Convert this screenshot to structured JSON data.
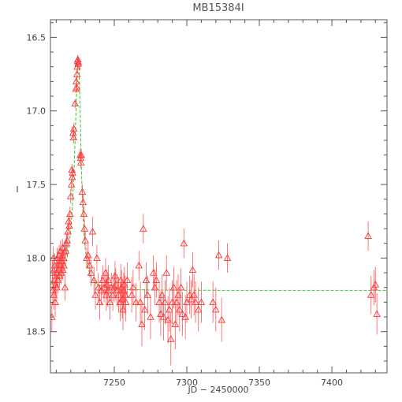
{
  "chart_data": {
    "type": "scatter",
    "title": "MB15384I",
    "xlabel": "JD − 2450000",
    "ylabel": "I",
    "xlim": [
      7206,
      7438
    ],
    "ylim": [
      18.78,
      16.38
    ],
    "y_inverted": true,
    "xticks": [
      7250,
      7300,
      7350,
      7400
    ],
    "yticks": [
      16.5,
      17.0,
      17.5,
      18.0,
      18.5
    ],
    "xtick_labels": [
      "7250",
      "7300",
      "7350",
      "7400"
    ],
    "ytick_labels": [
      "16.5",
      "17.0",
      "17.5",
      "18.0",
      "18.5"
    ],
    "marker": "open-triangle",
    "colors": {
      "points": "#ff3333",
      "errorbars": "#ff5555",
      "model": "#33cc33",
      "axes": "#555555"
    },
    "series": [
      {
        "kind": "observations",
        "points": [
          [
            7207.0,
            18.4,
            0.1
          ],
          [
            7207.3,
            18.1,
            0.08
          ],
          [
            7207.6,
            18.22,
            0.09
          ],
          [
            7208.0,
            18.0,
            0.08
          ],
          [
            7208.3,
            18.25,
            0.1
          ],
          [
            7208.6,
            18.15,
            0.09
          ],
          [
            7209.0,
            18.05,
            0.08
          ],
          [
            7209.3,
            18.3,
            0.1
          ],
          [
            7209.6,
            18.18,
            0.08
          ],
          [
            7210.0,
            18.1,
            0.08
          ],
          [
            7210.3,
            18.2,
            0.09
          ],
          [
            7210.6,
            18.0,
            0.07
          ],
          [
            7211.0,
            18.05,
            0.08
          ],
          [
            7211.3,
            18.15,
            0.09
          ],
          [
            7211.6,
            18.08,
            0.07
          ],
          [
            7212.0,
            17.98,
            0.07
          ],
          [
            7212.3,
            18.12,
            0.08
          ],
          [
            7212.6,
            18.05,
            0.07
          ],
          [
            7213.0,
            17.95,
            0.07
          ],
          [
            7213.3,
            18.1,
            0.08
          ],
          [
            7213.6,
            18.0,
            0.07
          ],
          [
            7214.0,
            18.02,
            0.07
          ],
          [
            7214.3,
            17.93,
            0.06
          ],
          [
            7214.6,
            18.08,
            0.07
          ],
          [
            7215.0,
            18.0,
            0.06
          ],
          [
            7215.3,
            18.05,
            0.07
          ],
          [
            7215.6,
            17.96,
            0.06
          ],
          [
            7216.0,
            18.2,
            0.09
          ],
          [
            7216.5,
            17.95,
            0.06
          ],
          [
            7217.0,
            17.9,
            0.06
          ],
          [
            7217.5,
            17.88,
            0.06
          ],
          [
            7218.0,
            17.82,
            0.05
          ],
          [
            7218.5,
            17.75,
            0.05
          ],
          [
            7219.0,
            17.78,
            0.05
          ],
          [
            7219.5,
            17.7,
            0.05
          ],
          [
            7220.0,
            17.58,
            0.05
          ],
          [
            7220.5,
            17.5,
            0.04
          ],
          [
            7220.8,
            17.4,
            0.04
          ],
          [
            7221.0,
            17.45,
            0.04
          ],
          [
            7221.3,
            17.42,
            0.04
          ],
          [
            7221.6,
            17.15,
            0.04
          ],
          [
            7221.9,
            17.18,
            0.04
          ],
          [
            7222.2,
            17.12,
            0.04
          ],
          [
            7223.0,
            16.95,
            0.03
          ],
          [
            7223.5,
            16.85,
            0.03
          ],
          [
            7223.8,
            16.8,
            0.03
          ],
          [
            7224.1,
            16.84,
            0.03
          ],
          [
            7224.3,
            16.75,
            0.03
          ],
          [
            7224.5,
            16.7,
            0.03
          ],
          [
            7224.7,
            16.66,
            0.03
          ],
          [
            7224.9,
            16.65,
            0.03
          ],
          [
            7225.1,
            16.68,
            0.03
          ],
          [
            7225.3,
            16.67,
            0.03
          ],
          [
            7226.5,
            17.3,
            0.04
          ],
          [
            7226.8,
            17.32,
            0.04
          ],
          [
            7227.0,
            17.35,
            0.04
          ],
          [
            7227.3,
            17.3,
            0.04
          ],
          [
            7228.0,
            17.55,
            0.05
          ],
          [
            7228.5,
            17.62,
            0.05
          ],
          [
            7229.0,
            17.7,
            0.05
          ],
          [
            7229.5,
            17.8,
            0.06
          ],
          [
            7230.0,
            17.88,
            0.06
          ],
          [
            7231.0,
            18.0,
            0.07
          ],
          [
            7232.0,
            17.98,
            0.08
          ],
          [
            7233.0,
            18.05,
            0.08
          ],
          [
            7234.0,
            18.1,
            0.09
          ],
          [
            7235.0,
            17.82,
            0.1
          ],
          [
            7236.0,
            18.15,
            0.09
          ],
          [
            7237.0,
            18.25,
            0.1
          ],
          [
            7238.0,
            18.0,
            0.09
          ],
          [
            7239.0,
            18.2,
            0.1
          ],
          [
            7240.0,
            18.3,
            0.12
          ],
          [
            7241.0,
            18.22,
            0.1
          ],
          [
            7242.0,
            18.15,
            0.1
          ],
          [
            7243.0,
            18.2,
            0.1
          ],
          [
            7244.0,
            18.1,
            0.1
          ],
          [
            7244.5,
            18.25,
            0.11
          ],
          [
            7245.0,
            18.18,
            0.1
          ],
          [
            7245.5,
            18.22,
            0.11
          ],
          [
            7246.0,
            18.15,
            0.1
          ],
          [
            7247.0,
            18.3,
            0.12
          ],
          [
            7248.0,
            18.2,
            0.1
          ],
          [
            7249.0,
            18.25,
            0.11
          ],
          [
            7250.0,
            18.2,
            0.1
          ],
          [
            7250.5,
            18.12,
            0.1
          ],
          [
            7251.0,
            18.18,
            0.11
          ],
          [
            7252.0,
            18.22,
            0.11
          ],
          [
            7253.0,
            18.25,
            0.12
          ],
          [
            7254.0,
            18.3,
            0.13
          ],
          [
            7254.5,
            18.15,
            0.11
          ],
          [
            7255.0,
            18.2,
            0.12
          ],
          [
            7255.5,
            18.28,
            0.13
          ],
          [
            7256.0,
            18.35,
            0.14
          ],
          [
            7256.5,
            18.22,
            0.12
          ],
          [
            7257.0,
            18.18,
            0.12
          ],
          [
            7257.5,
            18.25,
            0.13
          ],
          [
            7258.0,
            18.3,
            0.13
          ],
          [
            7259.0,
            18.15,
            0.12
          ],
          [
            7262.0,
            18.25,
            0.12
          ],
          [
            7263.0,
            18.2,
            0.12
          ],
          [
            7265.0,
            18.3,
            0.13
          ],
          [
            7267.0,
            18.05,
            0.1
          ],
          [
            7268.0,
            18.3,
            0.14
          ],
          [
            7269.0,
            18.45,
            0.15
          ],
          [
            7270.0,
            17.8,
            0.1
          ],
          [
            7271.0,
            18.35,
            0.14
          ],
          [
            7272.0,
            18.15,
            0.12
          ],
          [
            7273.0,
            18.25,
            0.13
          ],
          [
            7275.0,
            18.4,
            0.15
          ],
          [
            7277.0,
            18.1,
            0.12
          ],
          [
            7278.0,
            18.2,
            0.12
          ],
          [
            7279.0,
            18.15,
            0.12
          ],
          [
            7281.0,
            18.3,
            0.14
          ],
          [
            7282.0,
            18.38,
            0.15
          ],
          [
            7283.0,
            18.25,
            0.14
          ],
          [
            7284.0,
            18.4,
            0.16
          ],
          [
            7285.0,
            18.3,
            0.15
          ],
          [
            7286.0,
            18.1,
            0.12
          ],
          [
            7287.0,
            18.42,
            0.16
          ],
          [
            7288.0,
            18.35,
            0.15
          ],
          [
            7289.0,
            18.55,
            0.18
          ],
          [
            7290.0,
            18.3,
            0.15
          ],
          [
            7291.0,
            18.2,
            0.14
          ],
          [
            7292.0,
            18.45,
            0.17
          ],
          [
            7293.0,
            18.3,
            0.15
          ],
          [
            7294.0,
            18.25,
            0.14
          ],
          [
            7295.0,
            18.35,
            0.15
          ],
          [
            7296.0,
            18.2,
            0.13
          ],
          [
            7297.0,
            18.38,
            0.15
          ],
          [
            7298.0,
            17.9,
            0.1
          ],
          [
            7299.0,
            18.4,
            0.15
          ],
          [
            7300.0,
            18.3,
            0.14
          ],
          [
            7302.0,
            18.25,
            0.13
          ],
          [
            7303.0,
            18.28,
            0.13
          ],
          [
            7304.0,
            18.08,
            0.12
          ],
          [
            7305.0,
            18.25,
            0.14
          ],
          [
            7306.0,
            18.3,
            0.14
          ],
          [
            7308.0,
            18.35,
            0.15
          ],
          [
            7310.0,
            18.3,
            0.14
          ],
          [
            7318.0,
            18.3,
            0.14
          ],
          [
            7320.0,
            18.35,
            0.15
          ],
          [
            7322.0,
            17.98,
            0.1
          ],
          [
            7324.0,
            18.42,
            0.15
          ],
          [
            7328.0,
            18.0,
            0.1
          ],
          [
            7425.0,
            17.85,
            0.1
          ],
          [
            7427.0,
            18.25,
            0.13
          ],
          [
            7429.0,
            18.2,
            0.12
          ],
          [
            7430.0,
            18.18,
            0.12
          ],
          [
            7431.0,
            18.38,
            0.14
          ]
        ]
      },
      {
        "kind": "model",
        "baseline": 18.22,
        "peak_x": 7225.3,
        "peak_y": 16.66,
        "rise_width": 3.2,
        "fall_width": 2.2
      }
    ]
  }
}
